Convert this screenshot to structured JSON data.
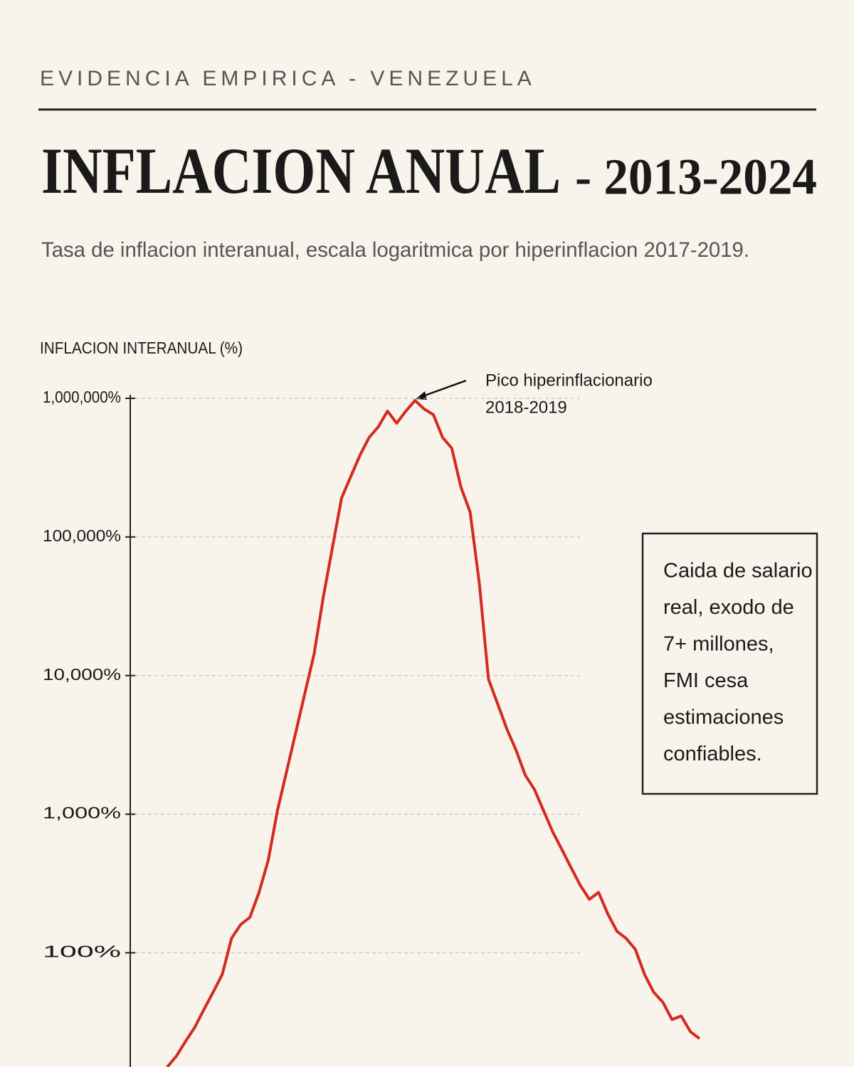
{
  "eyebrow": "EVIDENCIA EMPIRICA - VENEZUELA",
  "chart_data": {
    "type": "line",
    "title": "INFLACION ANUAL",
    "title_years": "- 2013-2024",
    "subtitle": "Tasa de inflacion interanual, escala logaritmica por hiperinflacion 2017-2019.",
    "y_label": "INFLACION INTERANUAL (%)",
    "log_scale": true,
    "grid": true,
    "color": "#d42a20",
    "ylim": [
      15,
      1000000
    ],
    "yticks": [
      {
        "value": 100,
        "label": "100%"
      },
      {
        "value": 1000,
        "label": "1,000%"
      },
      {
        "value": 10000,
        "label": "10,000%"
      },
      {
        "value": 100000,
        "label": "100,000%"
      },
      {
        "value": 1000000,
        "label": "1,000,000%"
      }
    ],
    "values": [
      15,
      18,
      23,
      29,
      39,
      52,
      70,
      127,
      160,
      180,
      273,
      465,
      1060,
      2030,
      3890,
      7450,
      14260,
      36650,
      83750,
      191400,
      272900,
      389000,
      522400,
      623700,
      809000,
      662000,
      809000,
      966000,
      837000,
      762000,
      522400,
      437500,
      228600,
      151000,
      46450,
      9420,
      6240,
      4120,
      2900,
      1915,
      1510,
      1060,
      745,
      555,
      412,
      307,
      243,
      273,
      191,
      143,
      127,
      106,
      70,
      52,
      44,
      33,
      35,
      27,
      24
    ],
    "peak_annotation": [
      "Pico hiperinflacionario",
      "2018-2019"
    ],
    "note": [
      "Caida de salario",
      "real, exodo de",
      "7+ millones,",
      "FMI cesa",
      "estimaciones",
      "confiables."
    ]
  }
}
